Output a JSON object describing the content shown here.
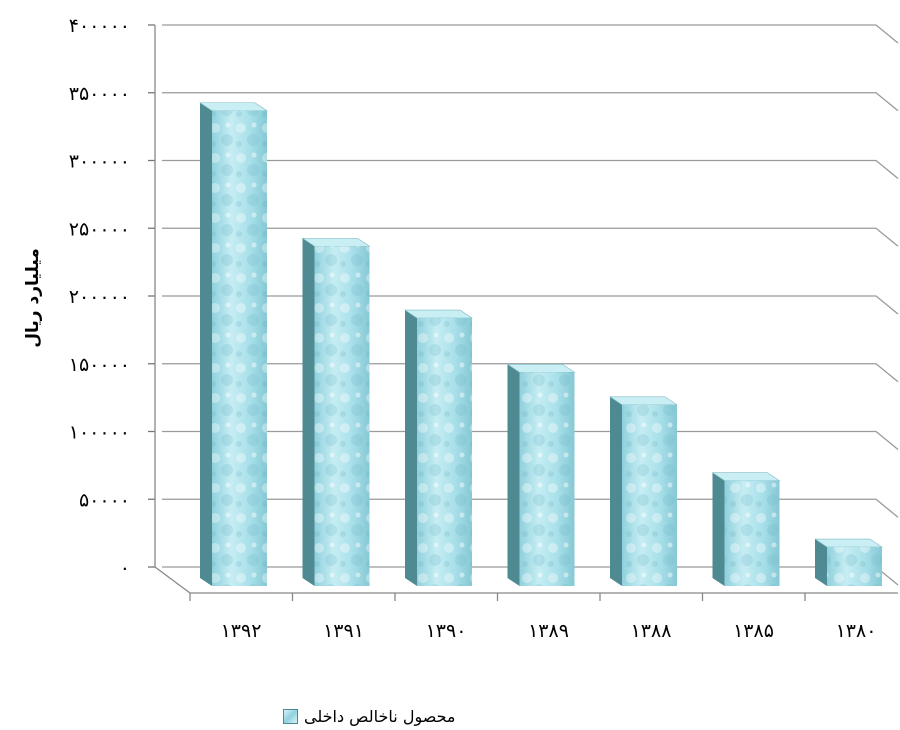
{
  "chart_data": {
    "type": "bar",
    "categories": [
      "۱۳۹۲",
      "۱۳۹۱",
      "۱۳۹۰",
      "۱۳۸۹",
      "۱۳۸۸",
      "۱۳۸۵",
      "۱۳۸۰"
    ],
    "series": [
      {
        "name": "محصول ناخالص داخلی",
        "values": [
          350000,
          250000,
          197000,
          157000,
          133000,
          77000,
          28000
        ]
      }
    ],
    "yticks": [
      "۰",
      "۵۰۰۰۰",
      "۱۰۰۰۰۰",
      "۱۵۰۰۰۰",
      "۲۰۰۰۰۰",
      "۲۵۰۰۰۰",
      "۳۰۰۰۰۰",
      "۳۵۰۰۰۰",
      "۴۰۰۰۰۰"
    ],
    "ylabel": "میلیارد ریال",
    "ylim": [
      0,
      400000
    ],
    "grid": true,
    "style": "3d-column",
    "legend_position": "bottom",
    "colors": {
      "bar_front": "#a9e0ea",
      "bar_side": "#4f8a93",
      "bar_top": "#c9eef3",
      "grid": "#9a9a9a"
    }
  }
}
